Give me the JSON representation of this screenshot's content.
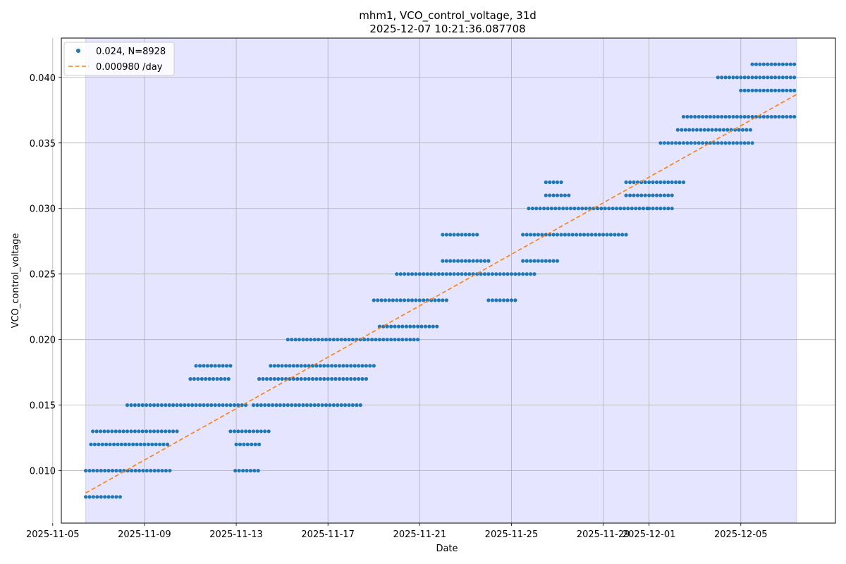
{
  "chart_data": {
    "type": "scatter",
    "title": "mhm1, VCO_control_voltage, 31d",
    "subtitle": "2025-12-07 10:21:36.087708",
    "xlabel": "Date",
    "ylabel": "VCO_control_voltage",
    "xlim": [
      "2025-11-05 09:00",
      "2025-12-09 03:00"
    ],
    "ylim": [
      0.006,
      0.043
    ],
    "shaded_span": [
      "2025-11-06 10:30",
      "2025-12-07 10:21"
    ],
    "x_ticks": [
      "2025-11-05",
      "2025-11-09",
      "2025-11-13",
      "2025-11-17",
      "2025-11-21",
      "2025-11-25",
      "2025-11-29",
      "2025-12-01",
      "2025-12-05"
    ],
    "y_ticks": [
      "0.010",
      "0.015",
      "0.020",
      "0.025",
      "0.030",
      "0.035",
      "0.040"
    ],
    "grid": true,
    "legend_position": "top-left",
    "series": [
      {
        "name": "0.024, N=8928",
        "kind": "scatter",
        "color": "#1f77b4",
        "bands": [
          {
            "y": 0.01,
            "x": [
              "2025-11-06 10:30",
              "2025-11-10 06:00"
            ]
          },
          {
            "y": 0.008,
            "x": [
              "2025-11-06 10:30",
              "2025-11-08 00:00"
            ]
          },
          {
            "y": 0.012,
            "x": [
              "2025-11-06 16:00",
              "2025-11-10 00:00"
            ]
          },
          {
            "y": 0.013,
            "x": [
              "2025-11-06 18:00",
              "2025-11-10 12:00"
            ]
          },
          {
            "y": 0.015,
            "x": [
              "2025-11-08 06:00",
              "2025-11-13 12:00"
            ]
          },
          {
            "y": 0.017,
            "x": [
              "2025-11-11 00:00",
              "2025-11-12 18:00"
            ]
          },
          {
            "y": 0.018,
            "x": [
              "2025-11-11 06:00",
              "2025-11-12 20:00"
            ]
          },
          {
            "y": 0.013,
            "x": [
              "2025-11-12 18:00",
              "2025-11-14 12:00"
            ]
          },
          {
            "y": 0.01,
            "x": [
              "2025-11-12 23:00",
              "2025-11-14 00:00"
            ]
          },
          {
            "y": 0.012,
            "x": [
              "2025-11-13 00:00",
              "2025-11-14 00:00"
            ]
          },
          {
            "y": 0.015,
            "x": [
              "2025-11-13 18:00",
              "2025-11-18 12:00"
            ]
          },
          {
            "y": 0.017,
            "x": [
              "2025-11-14 00:00",
              "2025-11-18 18:00"
            ]
          },
          {
            "y": 0.018,
            "x": [
              "2025-11-14 12:00",
              "2025-11-19 00:00"
            ]
          },
          {
            "y": 0.02,
            "x": [
              "2025-11-15 06:00",
              "2025-11-21 00:00"
            ]
          },
          {
            "y": 0.021,
            "x": [
              "2025-11-19 06:00",
              "2025-11-21 18:00"
            ]
          },
          {
            "y": 0.023,
            "x": [
              "2025-11-19 00:00",
              "2025-11-22 06:00"
            ]
          },
          {
            "y": 0.025,
            "x": [
              "2025-11-20 00:00",
              "2025-11-26 00:00"
            ]
          },
          {
            "y": 0.026,
            "x": [
              "2025-11-22 00:00",
              "2025-11-24 00:00"
            ]
          },
          {
            "y": 0.028,
            "x": [
              "2025-11-22 00:00",
              "2025-11-23 12:00"
            ]
          },
          {
            "y": 0.023,
            "x": [
              "2025-11-24 00:00",
              "2025-11-25 06:00"
            ]
          },
          {
            "y": 0.026,
            "x": [
              "2025-11-25 12:00",
              "2025-11-27 00:00"
            ]
          },
          {
            "y": 0.028,
            "x": [
              "2025-11-25 12:00",
              "2025-11-30 00:00"
            ]
          },
          {
            "y": 0.03,
            "x": [
              "2025-11-25 18:00",
              "2025-12-01 00:00"
            ]
          },
          {
            "y": 0.031,
            "x": [
              "2025-11-26 12:00",
              "2025-11-27 12:00"
            ]
          },
          {
            "y": 0.032,
            "x": [
              "2025-11-26 12:00",
              "2025-11-27 06:00"
            ]
          },
          {
            "y": 0.031,
            "x": [
              "2025-11-30 00:00",
              "2025-12-02 00:00"
            ]
          },
          {
            "y": 0.032,
            "x": [
              "2025-11-30 00:00",
              "2025-12-02 12:00"
            ]
          },
          {
            "y": 0.03,
            "x": [
              "2025-12-01 00:00",
              "2025-12-02 00:00"
            ]
          },
          {
            "y": 0.035,
            "x": [
              "2025-12-01 12:00",
              "2025-12-05 12:00"
            ]
          },
          {
            "y": 0.036,
            "x": [
              "2025-12-02 06:00",
              "2025-12-05 12:00"
            ]
          },
          {
            "y": 0.037,
            "x": [
              "2025-12-02 12:00",
              "2025-12-07 10:00"
            ]
          },
          {
            "y": 0.039,
            "x": [
              "2025-12-05 00:00",
              "2025-12-07 10:00"
            ]
          },
          {
            "y": 0.04,
            "x": [
              "2025-12-04 00:00",
              "2025-12-07 10:00"
            ]
          },
          {
            "y": 0.041,
            "x": [
              "2025-12-05 12:00",
              "2025-12-07 10:00"
            ]
          }
        ]
      },
      {
        "name": "0.000980 /day",
        "kind": "line",
        "dashed": true,
        "color": "#ff7f0e",
        "x": [
          "2025-11-06 10:30",
          "2025-12-07 10:21"
        ],
        "y": [
          0.0083,
          0.0387
        ]
      }
    ]
  }
}
